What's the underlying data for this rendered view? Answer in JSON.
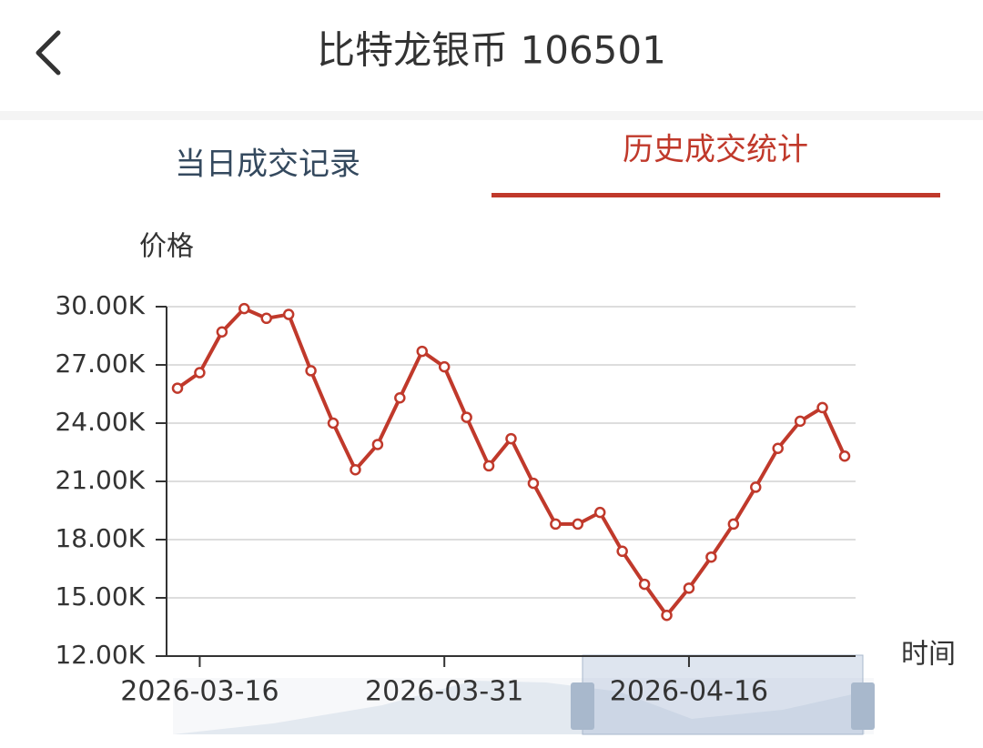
{
  "header": {
    "title": "比特龙银币 106501"
  },
  "tabs": [
    "当日成交记录",
    "历史成交统计"
  ],
  "chart_data": {
    "type": "line",
    "y_axis_label": "价格",
    "x_axis_label": "时间",
    "categories": [
      "",
      "2026-03-16",
      "",
      "",
      "",
      "",
      "",
      "",
      "",
      "",
      "",
      "",
      "2026-03-31",
      "",
      "",
      "",
      "",
      "",
      "",
      "",
      "",
      "",
      "",
      "2026-04-16",
      "",
      "",
      "",
      "",
      "",
      "",
      ""
    ],
    "series": [
      {
        "name": "价格",
        "color": "#c0392b",
        "values": [
          25800,
          26600,
          28700,
          29900,
          29400,
          29600,
          26700,
          24000,
          21600,
          22900,
          25300,
          27700,
          26900,
          24300,
          21800,
          23200,
          20900,
          18800,
          18800,
          19400,
          17400,
          15700,
          14100,
          15500,
          17100,
          18800,
          20700,
          22700,
          24100,
          24800,
          22300
        ]
      }
    ],
    "ylim": [
      12000,
      30000
    ],
    "yticks": [
      {
        "value": 12000,
        "label": "12.00K"
      },
      {
        "value": 15000,
        "label": "15.00K"
      },
      {
        "value": 18000,
        "label": "18.00K"
      },
      {
        "value": 21000,
        "label": "21.00K"
      },
      {
        "value": 24000,
        "label": "24.00K"
      },
      {
        "value": 27000,
        "label": "27.00K"
      },
      {
        "value": 30000,
        "label": "30.00K"
      }
    ],
    "grid": true
  }
}
